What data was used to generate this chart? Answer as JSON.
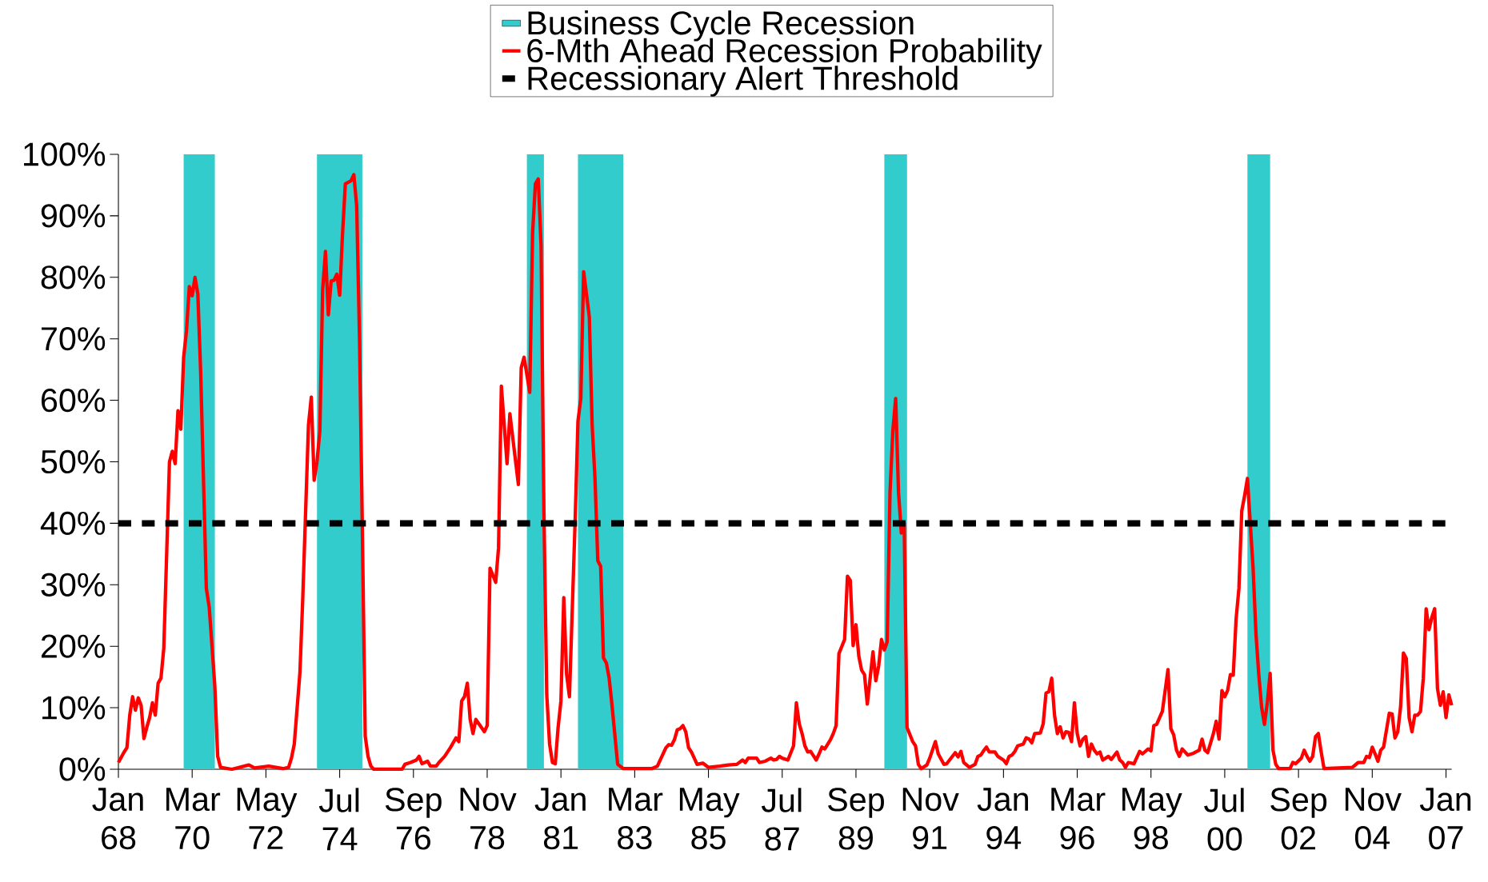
{
  "chart_data": {
    "type": "line",
    "xlim": [
      "1968-01",
      "2007-03"
    ],
    "xticks": [
      {
        "value": "1968-01",
        "label": "Jan 68"
      },
      {
        "value": "1970-03",
        "label": "Mar 70"
      },
      {
        "value": "1972-05",
        "label": "May 72"
      },
      {
        "value": "1974-07",
        "label": "Jul 74"
      },
      {
        "value": "1976-09",
        "label": "Sep 76"
      },
      {
        "value": "1978-11",
        "label": "Nov 78"
      },
      {
        "value": "1981-01",
        "label": "Jan 81"
      },
      {
        "value": "1983-03",
        "label": "Mar 83"
      },
      {
        "value": "1985-05",
        "label": "May 85"
      },
      {
        "value": "1987-07",
        "label": "Jul 87"
      },
      {
        "value": "1989-09",
        "label": "Sep 89"
      },
      {
        "value": "1991-11",
        "label": "Nov 91"
      },
      {
        "value": "1994-01",
        "label": "Jan 94"
      },
      {
        "value": "1996-03",
        "label": "Mar 96"
      },
      {
        "value": "1998-05",
        "label": "May 98"
      },
      {
        "value": "2000-07",
        "label": "Jul 00"
      },
      {
        "value": "2002-09",
        "label": "Sep 02"
      },
      {
        "value": "2004-11",
        "label": "Nov 04"
      },
      {
        "value": "2007-01",
        "label": "Jan 07"
      }
    ],
    "ylim": [
      0,
      100
    ],
    "yticks": [
      {
        "value": 0,
        "label": "0%"
      },
      {
        "value": 10,
        "label": "10%"
      },
      {
        "value": 20,
        "label": "20%"
      },
      {
        "value": 30,
        "label": "30%"
      },
      {
        "value": 40,
        "label": "40%"
      },
      {
        "value": 50,
        "label": "50%"
      },
      {
        "value": 60,
        "label": "60%"
      },
      {
        "value": 70,
        "label": "70%"
      },
      {
        "value": 80,
        "label": "80%"
      },
      {
        "value": 90,
        "label": "90%"
      },
      {
        "value": 100,
        "label": "100%"
      }
    ],
    "bands": [
      {
        "axis": "x",
        "from": "1969-12",
        "to": "1970-11",
        "label": "Business Cycle Recession",
        "color": "#33cccc"
      },
      {
        "axis": "x",
        "from": "1973-11",
        "to": "1975-03",
        "color": "#33cccc"
      },
      {
        "axis": "x",
        "from": "1980-01",
        "to": "1980-07",
        "color": "#33cccc"
      },
      {
        "axis": "x",
        "from": "1981-07",
        "to": "1982-11",
        "color": "#33cccc"
      },
      {
        "axis": "x",
        "from": "1990-07",
        "to": "1991-03",
        "color": "#33cccc"
      },
      {
        "axis": "x",
        "from": "2001-03",
        "to": "2001-11",
        "color": "#33cccc"
      }
    ],
    "ref_lines": [
      {
        "axis": "y",
        "value": 40,
        "label": "Recessionary Alert Threshold",
        "color": "#000000",
        "line_style": "dashed"
      }
    ],
    "legend": "top",
    "grid": false,
    "series": [
      {
        "name": "6-Mth Ahead Recession Probability",
        "color": "#ff0000",
        "x": [
          "1968-01",
          "1968-03",
          "1968-04",
          "1968-05",
          "1968-06",
          "1968-07",
          "1968-08",
          "1968-09",
          "1968-10",
          "1968-11",
          "1968-12",
          "1969-01",
          "1969-02",
          "1969-03",
          "1969-04",
          "1969-05",
          "1969-07",
          "1969-08",
          "1969-09",
          "1969-10",
          "1969-11",
          "1969-12",
          "1970-01",
          "1970-02",
          "1970-03",
          "1970-04",
          "1970-05",
          "1970-06",
          "1970-07",
          "1970-08",
          "1970-09",
          "1970-10",
          "1970-11",
          "1970-12",
          "1971-01",
          "1971-05",
          "1971-11",
          "1972-01",
          "1972-06",
          "1972-11",
          "1973-01",
          "1973-02",
          "1973-03",
          "1973-05",
          "1973-06",
          "1973-07",
          "1973-08",
          "1973-09",
          "1973-10",
          "1973-11",
          "1973-12",
          "1974-01",
          "1974-02",
          "1974-03",
          "1974-04",
          "1974-05",
          "1974-06",
          "1974-07",
          "1974-08",
          "1974-09",
          "1974-11",
          "1974-12",
          "1975-01",
          "1975-02",
          "1975-03",
          "1975-04",
          "1975-05",
          "1975-06",
          "1975-07",
          "1976-05",
          "1976-06",
          "1976-08",
          "1976-10",
          "1976-11",
          "1976-12",
          "1977-02",
          "1977-03",
          "1977-05",
          "1977-06",
          "1977-08",
          "1977-10",
          "1977-12",
          "1978-01",
          "1978-02",
          "1978-03",
          "1978-04",
          "1978-05",
          "1978-06",
          "1978-07",
          "1978-10",
          "1978-11",
          "1978-12",
          "1979-02",
          "1979-03",
          "1979-04",
          "1979-06",
          "1979-07",
          "1979-10",
          "1979-11",
          "1979-12",
          "1980-02",
          "1980-03",
          "1980-04",
          "1980-05",
          "1980-06",
          "1980-07",
          "1980-08",
          "1980-09",
          "1980-10",
          "1980-11",
          "1980-12",
          "1981-01",
          "1981-02",
          "1981-03",
          "1981-04",
          "1981-06",
          "1981-07",
          "1981-08",
          "1981-09",
          "1981-11",
          "1981-12",
          "1982-01",
          "1982-02",
          "1982-03",
          "1982-04",
          "1982-05",
          "1982-06",
          "1982-07",
          "1982-09",
          "1982-11",
          "1983-09",
          "1983-11",
          "1983-12",
          "1984-02",
          "1984-03",
          "1984-04",
          "1984-05",
          "1984-06",
          "1984-07",
          "1984-08",
          "1984-09",
          "1984-10",
          "1984-11",
          "1985-01",
          "1985-03",
          "1985-05",
          "1985-09",
          "1985-12",
          "1986-03",
          "1986-05",
          "1986-06",
          "1986-07",
          "1986-10",
          "1986-11",
          "1987-01",
          "1987-03",
          "1987-04",
          "1987-05",
          "1987-06",
          "1987-07",
          "1987-09",
          "1987-11",
          "1987-12",
          "1988-01",
          "1988-02",
          "1988-03",
          "1988-04",
          "1988-05",
          "1988-07",
          "1988-08",
          "1988-09",
          "1988-10",
          "1988-12",
          "1989-01",
          "1989-02",
          "1989-03",
          "1989-05",
          "1989-06",
          "1989-07",
          "1989-08",
          "1989-09",
          "1989-10",
          "1989-11",
          "1989-12",
          "1990-01",
          "1990-03",
          "1990-04",
          "1990-05",
          "1990-06",
          "1990-07",
          "1990-08",
          "1990-09",
          "1990-10",
          "1990-11",
          "1990-12",
          "1991-01",
          "1991-02",
          "1991-03",
          "1991-05",
          "1991-06",
          "1991-07",
          "1991-08",
          "1991-10",
          "1991-11",
          "1992-01",
          "1992-02",
          "1992-04",
          "1992-05",
          "1992-08",
          "1992-09",
          "1992-10",
          "1992-11",
          "1993-01",
          "1993-03",
          "1993-04",
          "1993-05",
          "1993-06",
          "1993-07",
          "1993-08",
          "1993-10",
          "1993-11",
          "1994-01",
          "1994-02",
          "1994-03",
          "1994-04",
          "1994-05",
          "1994-06",
          "1994-08",
          "1994-09",
          "1994-10",
          "1994-11",
          "1994-12",
          "1995-02",
          "1995-03",
          "1995-04",
          "1995-05",
          "1995-06",
          "1995-07",
          "1995-08",
          "1995-09",
          "1995-10",
          "1995-11",
          "1995-12",
          "1996-01",
          "1996-02",
          "1996-03",
          "1996-04",
          "1996-05",
          "1996-06",
          "1996-07",
          "1996-08",
          "1996-09",
          "1996-10",
          "1996-11",
          "1996-12",
          "1997-02",
          "1997-03",
          "1997-05",
          "1997-06",
          "1997-07",
          "1997-08",
          "1997-09",
          "1997-11",
          "1998-01",
          "1998-02",
          "1998-04",
          "1998-05",
          "1998-06",
          "1998-07",
          "1998-09",
          "1998-11",
          "1998-12",
          "1999-01",
          "1999-02",
          "1999-03",
          "1999-04",
          "1999-06",
          "1999-08",
          "1999-10",
          "1999-11",
          "1999-12",
          "2000-01",
          "2000-03",
          "2000-04",
          "2000-05",
          "2000-06",
          "2000-07",
          "2000-08",
          "2000-09",
          "2000-10",
          "2000-11",
          "2000-12",
          "2001-01",
          "2001-02",
          "2001-03",
          "2001-04",
          "2001-05",
          "2001-06",
          "2001-07",
          "2001-08",
          "2001-09",
          "2001-10",
          "2001-11",
          "2001-12",
          "2002-01",
          "2002-02",
          "2002-06",
          "2002-07",
          "2002-08",
          "2002-10",
          "2002-11",
          "2002-12",
          "2003-01",
          "2003-02",
          "2003-03",
          "2003-04",
          "2003-05",
          "2003-06",
          "2004-04",
          "2004-06",
          "2004-08",
          "2004-09",
          "2004-10",
          "2004-11",
          "2004-12",
          "2005-01",
          "2005-02",
          "2005-03",
          "2005-05",
          "2005-06",
          "2005-07",
          "2005-08",
          "2005-09",
          "2005-10",
          "2005-11",
          "2005-12",
          "2006-01",
          "2006-02",
          "2006-03",
          "2006-04",
          "2006-05",
          "2006-06",
          "2006-07",
          "2006-08",
          "2006-09",
          "2006-10",
          "2006-11",
          "2006-12",
          "2007-01",
          "2007-02",
          "2007-03"
        ],
        "values": [
          1.1,
          2.8,
          3.5,
          8.8,
          11.8,
          9.6,
          11.6,
          10.4,
          5,
          6.8,
          8.4,
          10.8,
          8.8,
          14,
          14.8,
          19.7,
          50,
          51.7,
          49.7,
          58.3,
          55.3,
          67,
          71.3,
          78.5,
          77,
          80,
          77.3,
          64.6,
          47,
          29.4,
          26.4,
          20,
          13.4,
          2.1,
          0.3,
          0,
          0.7,
          0.2,
          0.5,
          0.1,
          0.3,
          1.8,
          4.1,
          15.8,
          28,
          42,
          56,
          60.5,
          47,
          50,
          55,
          78,
          84.2,
          73.9,
          79.4,
          79.5,
          80.5,
          77.1,
          87,
          95.2,
          95.7,
          96.7,
          91.6,
          70,
          38.8,
          5.4,
          2.1,
          0.5,
          0,
          0,
          0.8,
          1.1,
          1.5,
          2.1,
          0.9,
          1.3,
          0.5,
          0.5,
          1.1,
          2.1,
          3.5,
          5.1,
          4.5,
          11.1,
          11.8,
          14,
          8.1,
          5.8,
          8.1,
          6.1,
          7.1,
          32.7,
          30.4,
          36,
          62.3,
          49.7,
          57.8,
          46.3,
          65.3,
          67,
          61.3,
          87.2,
          95.2,
          96,
          85.2,
          42,
          12.1,
          4.1,
          1.1,
          0.9,
          6.8,
          11.1,
          27.9,
          15.4,
          11.8,
          40.4,
          56.6,
          60.3,
          80.9,
          73.6,
          56,
          47.3,
          33.9,
          33,
          18.1,
          17.3,
          14.8,
          10.4,
          0.8,
          0.1,
          0.1,
          0.5,
          1.5,
          3.5,
          4,
          3.9,
          4.8,
          6.4,
          6.6,
          7.1,
          6.1,
          3.5,
          2.8,
          0.8,
          1,
          0.3,
          0.5,
          0.7,
          0.8,
          1.5,
          1.1,
          1.8,
          1.8,
          1.1,
          1.3,
          1.8,
          1.5,
          1.6,
          2.1,
          1.8,
          1.5,
          3.8,
          10.8,
          7.4,
          5.8,
          3.8,
          2.8,
          2.9,
          1.5,
          2.5,
          3.6,
          3.3,
          4.8,
          5.8,
          7.1,
          18.8,
          21.1,
          31.4,
          30.7,
          20.1,
          23.5,
          18.4,
          16.1,
          15.4,
          10.6,
          19.1,
          14.4,
          16.8,
          21.1,
          19.4,
          20.7,
          45,
          55,
          60.3,
          45,
          38.4,
          40,
          6.8,
          4.5,
          3.8,
          0.8,
          0.1,
          0.7,
          1.8,
          4.5,
          2.5,
          0.8,
          0.9,
          2.7,
          2,
          2.9,
          1.1,
          0.3,
          0.8,
          2.1,
          2.3,
          3,
          3.6,
          2.8,
          2.8,
          2.1,
          1.5,
          0.9,
          2.1,
          2.3,
          2.9,
          3.8,
          4.1,
          5.1,
          4.9,
          4.3,
          5.8,
          5.9,
          7.4,
          12.4,
          12.6,
          14.8,
          8.8,
          5.8,
          6.9,
          5.1,
          6.1,
          6,
          4.5,
          10.8,
          5.8,
          3.8,
          4.9,
          5.3,
          2.1,
          4.1,
          3.1,
          2.5,
          2.8,
          1.5,
          2.1,
          1.6,
          2.8,
          1.5,
          1.1,
          0.3,
          1.1,
          0.9,
          2.9,
          2.5,
          3.3,
          3,
          7.1,
          7.3,
          9.4,
          16.2,
          6.6,
          5.6,
          3.1,
          2.1,
          3.3,
          2.3,
          2.6,
          3.1,
          4.9,
          3.1,
          2.7,
          5.8,
          7.8,
          4.9,
          12.8,
          11.8,
          12.8,
          15.4,
          15.3,
          24.4,
          29.4,
          42,
          44.5,
          47.3,
          40,
          32.7,
          22.1,
          15.4,
          10.1,
          7.3,
          10.8,
          15.6,
          3.1,
          0.8,
          0.1,
          0.1,
          1.1,
          0.9,
          1.8,
          3.1,
          2.1,
          1.3,
          2.1,
          5.3,
          5.8,
          2.8,
          0.1,
          0.3,
          1.1,
          1.1,
          2.1,
          1.9,
          3.6,
          2.5,
          1.3,
          3.1,
          3.6,
          9.1,
          9,
          5.1,
          6.1,
          10.2,
          18.9,
          18,
          8.4,
          6.1,
          8.8,
          8.8,
          9.4,
          14.8,
          26.1,
          22.7,
          24.7,
          26.1,
          13.1,
          10.4,
          12.6,
          8.4,
          12.1,
          10.4
        ]
      }
    ]
  }
}
